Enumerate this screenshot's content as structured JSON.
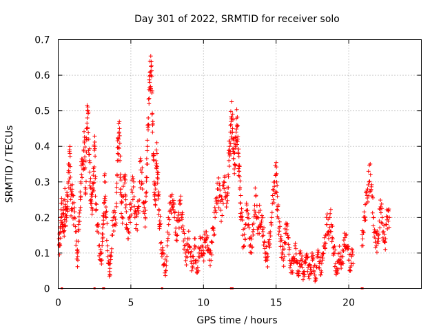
{
  "chart_data": {
    "type": "scatter",
    "title": "Day 301 of 2022, SRMTID for receiver solo",
    "xlabel": "GPS time / hours",
    "ylabel": "SRMTID / TECUs",
    "xlim": [
      0,
      25
    ],
    "ylim": [
      0,
      0.7
    ],
    "x_ticks": [
      0,
      5,
      10,
      15,
      20
    ],
    "y_ticks": [
      0,
      0.1,
      0.2,
      0.3,
      0.4,
      0.5,
      0.6,
      0.7
    ],
    "x_tick_labels": [
      "0",
      "5",
      "10",
      "15",
      "20"
    ],
    "y_tick_labels": [
      "0",
      "0.1",
      "0.2",
      "0.3",
      "0.4",
      "0.5",
      "0.6",
      "0.7"
    ],
    "grid": true,
    "marker": "+",
    "color": "#ff0000",
    "series": [
      {
        "name": "SRMTID",
        "points": [
          [
            0.05,
            0.14
          ],
          [
            0.1,
            0.12
          ],
          [
            0.15,
            0.17
          ],
          [
            0.2,
            0.2
          ],
          [
            0.25,
            0.24
          ],
          [
            0.3,
            0.18
          ],
          [
            0.35,
            0.22
          ],
          [
            0.4,
            0.16
          ],
          [
            0.45,
            0.25
          ],
          [
            0.5,
            0.21
          ],
          [
            0.55,
            0.19
          ],
          [
            0.6,
            0.27
          ],
          [
            0.65,
            0.23
          ],
          [
            0.7,
            0.3
          ],
          [
            0.75,
            0.35
          ],
          [
            0.8,
            0.38
          ],
          [
            0.85,
            0.28
          ],
          [
            0.9,
            0.22
          ],
          [
            0.95,
            0.26
          ],
          [
            1.0,
            0.24
          ],
          [
            1.1,
            0.2
          ],
          [
            1.2,
            0.16
          ],
          [
            1.3,
            0.1
          ],
          [
            1.35,
            0.08
          ],
          [
            1.4,
            0.18
          ],
          [
            1.5,
            0.22
          ],
          [
            1.55,
            0.3
          ],
          [
            1.6,
            0.32
          ],
          [
            1.7,
            0.36
          ],
          [
            1.75,
            0.39
          ],
          [
            1.8,
            0.41
          ],
          [
            1.85,
            0.34
          ],
          [
            1.9,
            0.28
          ],
          [
            1.95,
            0.45
          ],
          [
            2.0,
            0.48
          ],
          [
            2.05,
            0.5
          ],
          [
            2.1,
            0.42
          ],
          [
            2.15,
            0.36
          ],
          [
            2.2,
            0.3
          ],
          [
            2.25,
            0.25
          ],
          [
            2.3,
            0.26
          ],
          [
            2.35,
            0.22
          ],
          [
            2.4,
            0.28
          ],
          [
            2.45,
            0.33
          ],
          [
            2.5,
            0.4
          ],
          [
            2.55,
            0.31
          ],
          [
            2.6,
            0.22
          ],
          [
            2.7,
            0.18
          ],
          [
            2.8,
            0.12
          ],
          [
            2.9,
            0.08
          ],
          [
            3.0,
            0.1
          ],
          [
            3.05,
            0.14
          ],
          [
            3.1,
            0.18
          ],
          [
            3.15,
            0.24
          ],
          [
            3.2,
            0.3
          ],
          [
            3.25,
            0.26
          ],
          [
            3.3,
            0.2
          ],
          [
            3.4,
            0.12
          ],
          [
            3.5,
            0.07
          ],
          [
            3.55,
            0.04
          ],
          [
            3.6,
            0.09
          ],
          [
            3.7,
            0.15
          ],
          [
            3.8,
            0.2
          ],
          [
            3.9,
            0.18
          ],
          [
            4.0,
            0.23
          ],
          [
            4.05,
            0.32
          ],
          [
            4.1,
            0.38
          ],
          [
            4.15,
            0.42
          ],
          [
            4.2,
            0.44
          ],
          [
            4.25,
            0.36
          ],
          [
            4.3,
            0.28
          ],
          [
            4.35,
            0.24
          ],
          [
            4.4,
            0.2
          ],
          [
            4.5,
            0.26
          ],
          [
            4.6,
            0.32
          ],
          [
            4.65,
            0.25
          ],
          [
            4.7,
            0.18
          ],
          [
            4.8,
            0.14
          ],
          [
            4.9,
            0.2
          ],
          [
            5.0,
            0.24
          ],
          [
            5.1,
            0.27
          ],
          [
            5.2,
            0.3
          ],
          [
            5.3,
            0.22
          ],
          [
            5.4,
            0.18
          ],
          [
            5.5,
            0.23
          ],
          [
            5.6,
            0.3
          ],
          [
            5.7,
            0.36
          ],
          [
            5.8,
            0.28
          ],
          [
            5.9,
            0.24
          ],
          [
            6.0,
            0.2
          ],
          [
            6.05,
            0.26
          ],
          [
            6.1,
            0.35
          ],
          [
            6.15,
            0.4
          ],
          [
            6.2,
            0.48
          ],
          [
            6.25,
            0.52
          ],
          [
            6.3,
            0.58
          ],
          [
            6.35,
            0.61
          ],
          [
            6.4,
            0.6
          ],
          [
            6.45,
            0.55
          ],
          [
            6.5,
            0.46
          ],
          [
            6.55,
            0.38
          ],
          [
            6.6,
            0.3
          ],
          [
            6.65,
            0.25
          ],
          [
            6.7,
            0.28
          ],
          [
            6.75,
            0.34
          ],
          [
            6.8,
            0.38
          ],
          [
            6.85,
            0.32
          ],
          [
            6.9,
            0.26
          ],
          [
            6.95,
            0.22
          ],
          [
            7.0,
            0.18
          ],
          [
            7.1,
            0.13
          ],
          [
            7.2,
            0.1
          ],
          [
            7.3,
            0.07
          ],
          [
            7.4,
            0.05
          ],
          [
            7.5,
            0.12
          ],
          [
            7.6,
            0.18
          ],
          [
            7.7,
            0.22
          ],
          [
            7.8,
            0.26
          ],
          [
            7.9,
            0.23
          ],
          [
            8.0,
            0.2
          ],
          [
            8.1,
            0.17
          ],
          [
            8.2,
            0.15
          ],
          [
            8.3,
            0.19
          ],
          [
            8.4,
            0.24
          ],
          [
            8.5,
            0.2
          ],
          [
            8.6,
            0.16
          ],
          [
            8.7,
            0.12
          ],
          [
            8.8,
            0.09
          ],
          [
            8.9,
            0.11
          ],
          [
            9.0,
            0.14
          ],
          [
            9.1,
            0.1
          ],
          [
            9.2,
            0.07
          ],
          [
            9.3,
            0.09
          ],
          [
            9.4,
            0.12
          ],
          [
            9.5,
            0.08
          ],
          [
            9.6,
            0.06
          ],
          [
            9.7,
            0.1
          ],
          [
            9.8,
            0.14
          ],
          [
            9.9,
            0.12
          ],
          [
            10.0,
            0.1
          ],
          [
            10.1,
            0.13
          ],
          [
            10.2,
            0.16
          ],
          [
            10.3,
            0.12
          ],
          [
            10.4,
            0.08
          ],
          [
            10.5,
            0.1
          ],
          [
            10.6,
            0.13
          ],
          [
            10.7,
            0.17
          ],
          [
            10.8,
            0.2
          ],
          [
            10.9,
            0.24
          ],
          [
            11.0,
            0.28
          ],
          [
            11.1,
            0.26
          ],
          [
            11.2,
            0.22
          ],
          [
            11.3,
            0.25
          ],
          [
            11.4,
            0.3
          ],
          [
            11.5,
            0.27
          ],
          [
            11.6,
            0.24
          ],
          [
            11.7,
            0.32
          ],
          [
            11.75,
            0.36
          ],
          [
            11.8,
            0.4
          ],
          [
            11.85,
            0.44
          ],
          [
            11.9,
            0.47
          ],
          [
            11.95,
            0.48
          ],
          [
            12.0,
            0.45
          ],
          [
            12.05,
            0.42
          ],
          [
            12.1,
            0.38
          ],
          [
            12.15,
            0.35
          ],
          [
            12.2,
            0.4
          ],
          [
            12.25,
            0.44
          ],
          [
            12.3,
            0.46
          ],
          [
            12.35,
            0.42
          ],
          [
            12.4,
            0.38
          ],
          [
            12.45,
            0.33
          ],
          [
            12.5,
            0.28
          ],
          [
            12.55,
            0.24
          ],
          [
            12.6,
            0.2
          ],
          [
            12.7,
            0.15
          ],
          [
            12.8,
            0.12
          ],
          [
            12.9,
            0.18
          ],
          [
            13.0,
            0.22
          ],
          [
            13.1,
            0.18
          ],
          [
            13.2,
            0.14
          ],
          [
            13.3,
            0.1
          ],
          [
            13.4,
            0.16
          ],
          [
            13.5,
            0.22
          ],
          [
            13.6,
            0.26
          ],
          [
            13.7,
            0.2
          ],
          [
            13.8,
            0.17
          ],
          [
            13.9,
            0.22
          ],
          [
            14.0,
            0.19
          ],
          [
            14.1,
            0.16
          ],
          [
            14.2,
            0.13
          ],
          [
            14.3,
            0.1
          ],
          [
            14.4,
            0.08
          ],
          [
            14.5,
            0.12
          ],
          [
            14.6,
            0.16
          ],
          [
            14.7,
            0.2
          ],
          [
            14.8,
            0.25
          ],
          [
            14.9,
            0.3
          ],
          [
            15.0,
            0.32
          ],
          [
            15.05,
            0.27
          ],
          [
            15.1,
            0.22
          ],
          [
            15.2,
            0.17
          ],
          [
            15.3,
            0.14
          ],
          [
            15.4,
            0.1
          ],
          [
            15.5,
            0.08
          ],
          [
            15.6,
            0.13
          ],
          [
            15.7,
            0.18
          ],
          [
            15.8,
            0.15
          ],
          [
            15.9,
            0.11
          ],
          [
            16.0,
            0.07
          ],
          [
            16.1,
            0.05
          ],
          [
            16.2,
            0.09
          ],
          [
            16.3,
            0.12
          ],
          [
            16.4,
            0.08
          ],
          [
            16.5,
            0.05
          ],
          [
            16.6,
            0.07
          ],
          [
            16.7,
            0.1
          ],
          [
            16.8,
            0.06
          ],
          [
            16.9,
            0.04
          ],
          [
            17.0,
            0.07
          ],
          [
            17.1,
            0.09
          ],
          [
            17.2,
            0.06
          ],
          [
            17.3,
            0.04
          ],
          [
            17.4,
            0.06
          ],
          [
            17.5,
            0.08
          ],
          [
            17.6,
            0.05
          ],
          [
            17.7,
            0.03
          ],
          [
            17.8,
            0.06
          ],
          [
            17.9,
            0.09
          ],
          [
            18.0,
            0.07
          ],
          [
            18.1,
            0.05
          ],
          [
            18.2,
            0.08
          ],
          [
            18.3,
            0.12
          ],
          [
            18.4,
            0.15
          ],
          [
            18.5,
            0.18
          ],
          [
            18.6,
            0.16
          ],
          [
            18.7,
            0.2
          ],
          [
            18.8,
            0.18
          ],
          [
            18.9,
            0.14
          ],
          [
            19.0,
            0.1
          ],
          [
            19.1,
            0.07
          ],
          [
            19.2,
            0.05
          ],
          [
            19.3,
            0.08
          ],
          [
            19.4,
            0.1
          ],
          [
            19.5,
            0.07
          ],
          [
            19.6,
            0.09
          ],
          [
            19.7,
            0.12
          ],
          [
            19.8,
            0.15
          ],
          [
            19.9,
            0.11
          ],
          [
            20.0,
            0.08
          ],
          [
            20.1,
            0.06
          ],
          [
            20.2,
            0.09
          ],
          [
            20.3,
            0.07
          ],
          [
            20.9,
            0.12
          ],
          [
            21.0,
            0.16
          ],
          [
            21.1,
            0.2
          ],
          [
            21.2,
            0.24
          ],
          [
            21.3,
            0.28
          ],
          [
            21.4,
            0.3
          ],
          [
            21.5,
            0.32
          ],
          [
            21.6,
            0.26
          ],
          [
            21.7,
            0.2
          ],
          [
            21.8,
            0.16
          ],
          [
            21.9,
            0.12
          ],
          [
            22.0,
            0.15
          ],
          [
            22.1,
            0.19
          ],
          [
            22.2,
            0.23
          ],
          [
            22.3,
            0.2
          ],
          [
            22.4,
            0.16
          ],
          [
            22.5,
            0.13
          ],
          [
            22.6,
            0.18
          ],
          [
            22.7,
            0.22
          ],
          [
            22.8,
            0.2
          ]
        ]
      }
    ],
    "zero_points_x": [
      0.25,
      2.5,
      3.1,
      3.15,
      7.15,
      11.9,
      11.95,
      12.0,
      20.9,
      20.95
    ]
  }
}
